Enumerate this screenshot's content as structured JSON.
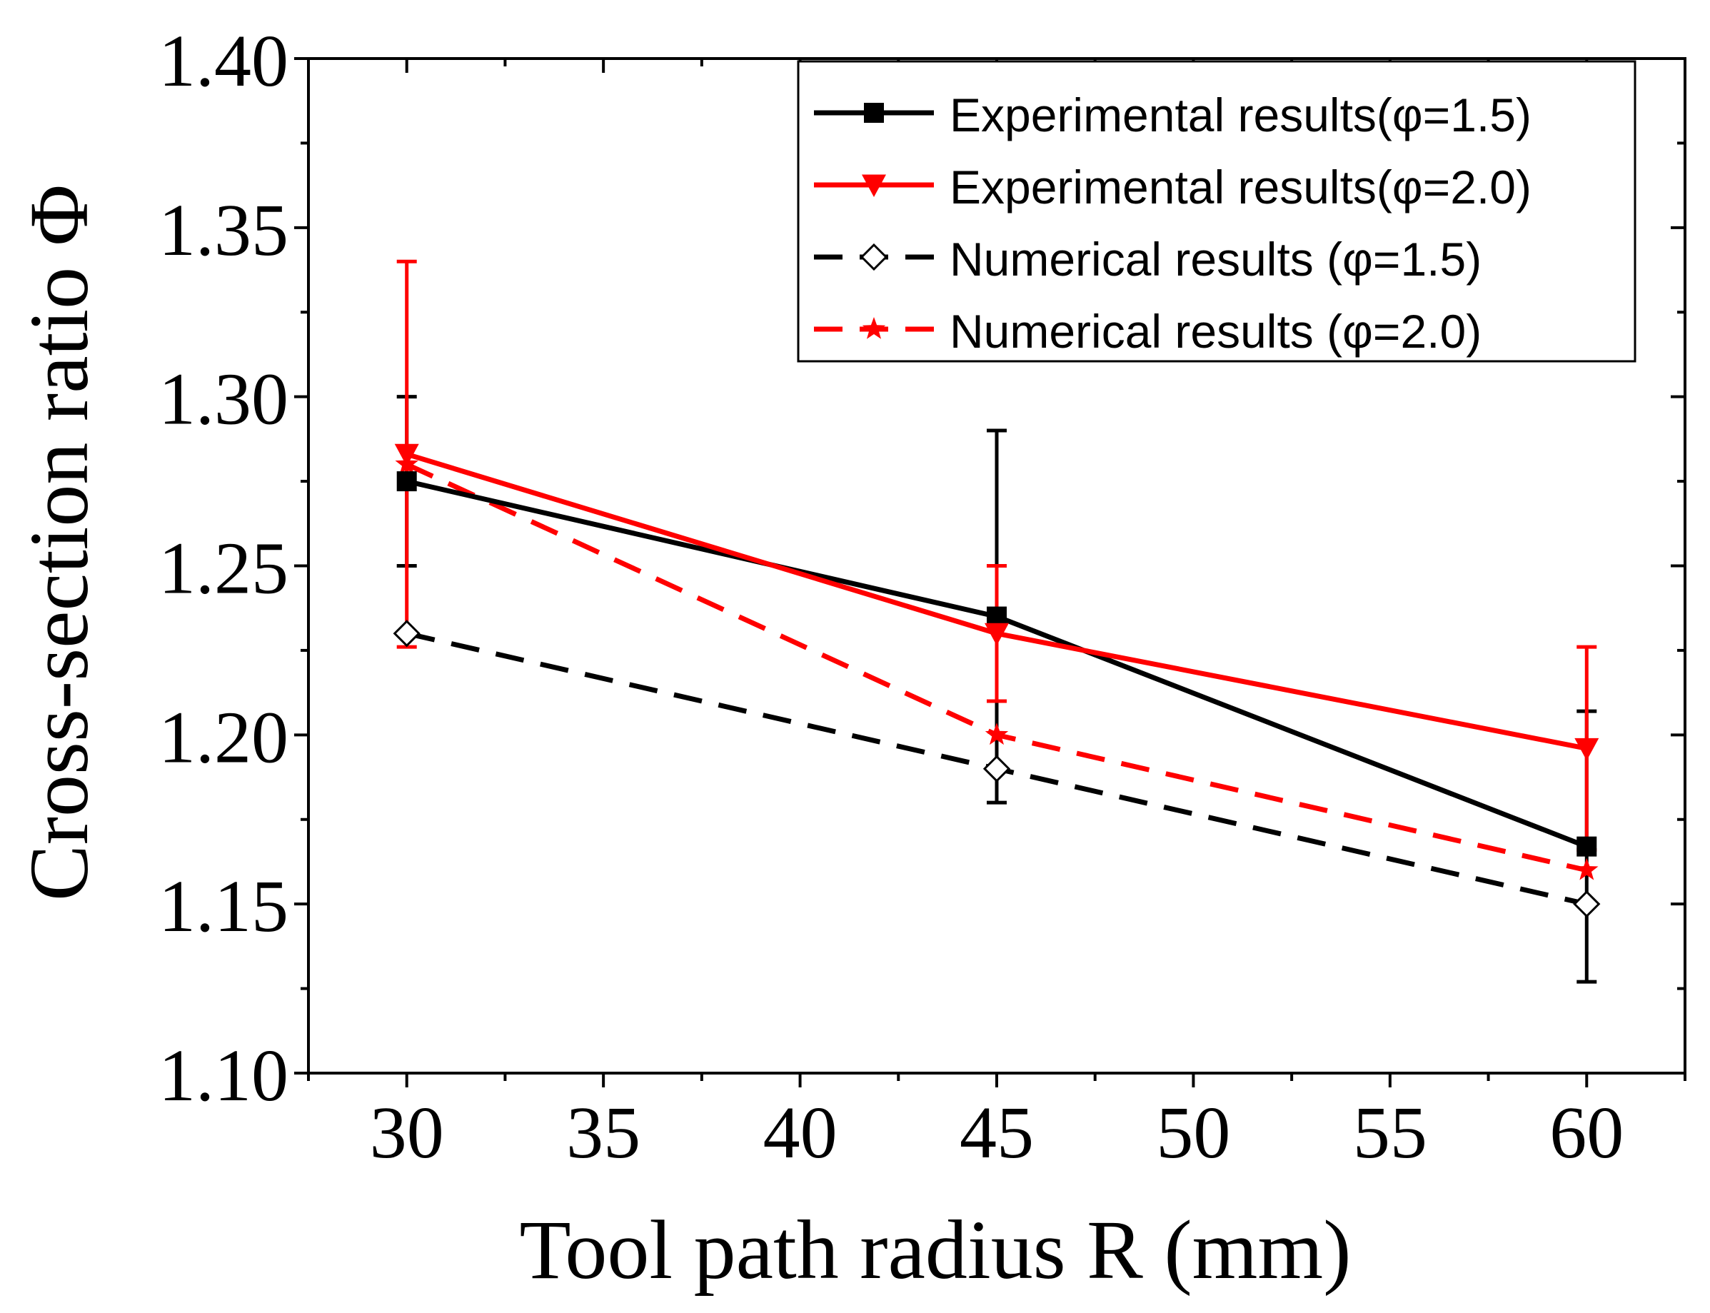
{
  "chart_data": {
    "type": "line",
    "title": "",
    "xlabel": "Tool path radius R (mm)",
    "ylabel": "Cross-section ratio Φ",
    "xlim": [
      27.5,
      62.5
    ],
    "ylim": [
      1.1,
      1.4
    ],
    "xticks": [
      30,
      35,
      40,
      45,
      50,
      55,
      60
    ],
    "xtick_labels": [
      "30",
      "35",
      "40",
      "45",
      "50",
      "55",
      "60"
    ],
    "yticks": [
      1.1,
      1.15,
      1.2,
      1.25,
      1.3,
      1.35,
      1.4
    ],
    "ytick_labels": [
      "1.10",
      "1.15",
      "1.20",
      "1.25",
      "1.30",
      "1.35",
      "1.40"
    ],
    "legend_position": "top-right",
    "series": [
      {
        "name": "Experimental results(φ=1.5)",
        "color": "#000000",
        "line_style": "solid",
        "marker": "square",
        "x": [
          30,
          45,
          60
        ],
        "y": [
          1.275,
          1.235,
          1.167
        ],
        "error_low": [
          1.25,
          1.18,
          1.127
        ],
        "error_high": [
          1.3,
          1.29,
          1.207
        ]
      },
      {
        "name": "Experimental results(φ=2.0)",
        "color": "#ff0000",
        "line_style": "solid",
        "marker": "triangle-down",
        "x": [
          30,
          45,
          60
        ],
        "y": [
          1.283,
          1.23,
          1.196
        ],
        "error_low": [
          1.226,
          1.21,
          1.166
        ],
        "error_high": [
          1.34,
          1.25,
          1.226
        ]
      },
      {
        "name": "Numerical results (φ=1.5)",
        "color": "#000000",
        "line_style": "dashed",
        "marker": "diamond-open",
        "x": [
          30,
          45,
          60
        ],
        "y": [
          1.23,
          1.19,
          1.15
        ]
      },
      {
        "name": "Numerical results (φ=2.0)",
        "color": "#ff0000",
        "line_style": "dashed",
        "marker": "star",
        "x": [
          30,
          45,
          60
        ],
        "y": [
          1.28,
          1.2,
          1.16
        ]
      }
    ]
  }
}
